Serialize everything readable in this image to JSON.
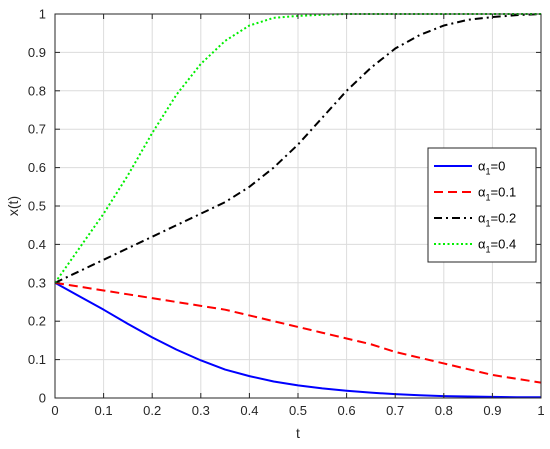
{
  "chart_data": {
    "type": "line",
    "xlabel": "t",
    "ylabel": "x(t)",
    "xlim": [
      0,
      1
    ],
    "ylim": [
      0,
      1
    ],
    "xticks": [
      "0",
      "0.1",
      "0.2",
      "0.3",
      "0.4",
      "0.5",
      "0.6",
      "0.7",
      "0.8",
      "0.9",
      "1"
    ],
    "yticks": [
      "0",
      "0.1",
      "0.2",
      "0.3",
      "0.4",
      "0.5",
      "0.6",
      "0.7",
      "0.8",
      "0.9",
      "1"
    ],
    "grid": true,
    "legend_position": "right",
    "x": [
      0,
      0.05,
      0.1,
      0.15,
      0.2,
      0.25,
      0.3,
      0.35,
      0.4,
      0.45,
      0.5,
      0.55,
      0.6,
      0.65,
      0.7,
      0.75,
      0.8,
      0.85,
      0.9,
      0.95,
      1.0
    ],
    "series": [
      {
        "name": "α1=0",
        "legend_base": "α",
        "legend_sub": "1",
        "legend_value": "=0",
        "color": "#0000ff",
        "dash": "solid",
        "values": [
          0.3,
          0.265,
          0.23,
          0.193,
          0.158,
          0.126,
          0.098,
          0.074,
          0.057,
          0.043,
          0.033,
          0.025,
          0.019,
          0.014,
          0.01,
          0.007,
          0.005,
          0.004,
          0.003,
          0.002,
          0.002
        ]
      },
      {
        "name": "α1=0.1",
        "legend_base": "α",
        "legend_sub": "1",
        "legend_value": "=0.1",
        "color": "#ff0000",
        "dash": "dashed",
        "values": [
          0.3,
          0.29,
          0.28,
          0.27,
          0.26,
          0.25,
          0.24,
          0.23,
          0.215,
          0.2,
          0.185,
          0.17,
          0.155,
          0.14,
          0.12,
          0.105,
          0.09,
          0.075,
          0.06,
          0.05,
          0.04
        ]
      },
      {
        "name": "α1=0.2",
        "legend_base": "α",
        "legend_sub": "1",
        "legend_value": "=0.2",
        "color": "#000000",
        "dash": "dashdot",
        "values": [
          0.3,
          0.33,
          0.36,
          0.39,
          0.42,
          0.45,
          0.48,
          0.51,
          0.55,
          0.6,
          0.66,
          0.73,
          0.8,
          0.86,
          0.91,
          0.945,
          0.97,
          0.985,
          0.992,
          0.997,
          1.0
        ]
      },
      {
        "name": "α1=0.4",
        "legend_base": "α",
        "legend_sub": "1",
        "legend_value": "=0.4",
        "color": "#00ee00",
        "dash": "dotted",
        "values": [
          0.3,
          0.39,
          0.48,
          0.58,
          0.69,
          0.79,
          0.87,
          0.93,
          0.97,
          0.99,
          0.995,
          0.998,
          1.0,
          1.0,
          1.0,
          1.0,
          1.0,
          1.0,
          1.0,
          1.0,
          1.0
        ]
      }
    ]
  }
}
